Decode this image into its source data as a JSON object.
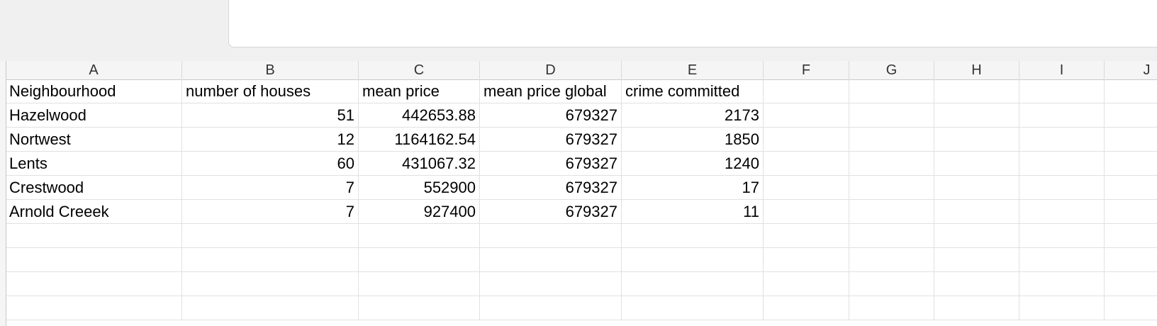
{
  "columns": [
    "A",
    "B",
    "C",
    "D",
    "E",
    "F",
    "G",
    "H",
    "I",
    "J"
  ],
  "rows": [
    [
      "Neighbourhood",
      "number of houses",
      "mean price",
      "mean price global",
      "crime committed"
    ],
    [
      "Hazelwood",
      "51",
      "442653.88",
      "679327",
      "2173"
    ],
    [
      "Nortwest",
      "12",
      "1164162.54",
      "679327",
      "1850"
    ],
    [
      "Lents",
      "60",
      "431067.32",
      "679327",
      "1240"
    ],
    [
      "Crestwood",
      "7",
      "552900",
      "679327",
      "17"
    ],
    [
      "Arnold Creeek",
      "7",
      "927400",
      "679327",
      "11"
    ]
  ]
}
